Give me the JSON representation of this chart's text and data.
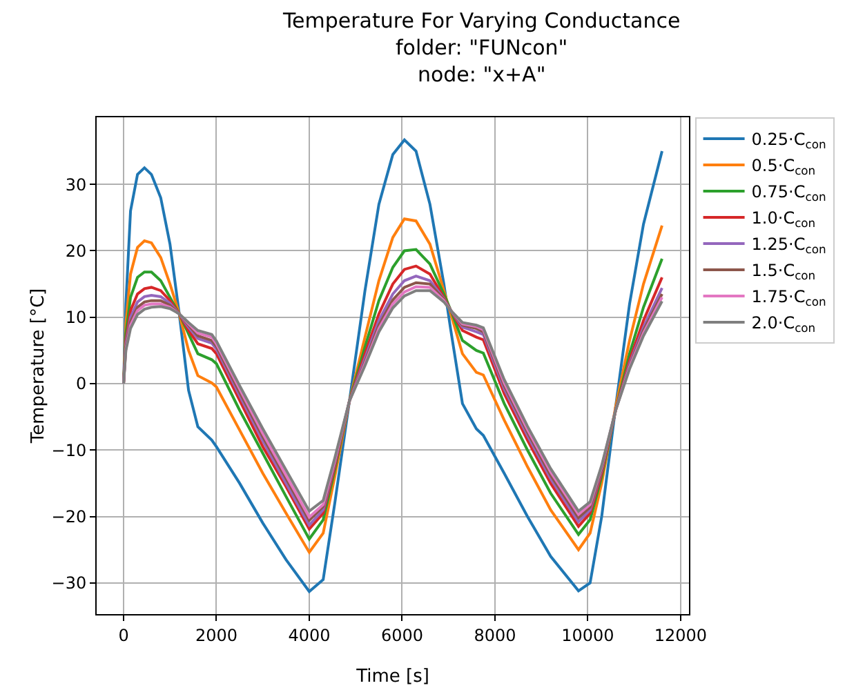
{
  "chart_data": {
    "type": "line",
    "title": "Temperature For Varying Conductance\nfolder: \"FUNcon\"\nnode: \"x+A\"",
    "xlabel": "Time [s]",
    "ylabel": "Temperature [°C]",
    "x": [
      0,
      50,
      150,
      300,
      450,
      600,
      800,
      1000,
      1200,
      1400,
      1600,
      1900,
      2000,
      2500,
      3000,
      3500,
      4000,
      4300,
      4550,
      4866,
      5200,
      5500,
      5800,
      6050,
      6300,
      6600,
      6900,
      7050,
      7300,
      7600,
      7750,
      8200,
      8700,
      9200,
      9800,
      10050,
      10300,
      10600,
      10900,
      11200,
      11600
    ],
    "series": [
      {
        "name": "0.25·C$_{con}$",
        "color": "#1f77b4",
        "values": [
          0,
          12,
          26,
          31.5,
          32.5,
          31.5,
          28,
          21,
          10.5,
          -1,
          -6.5,
          -8.5,
          -9.5,
          -15,
          -21,
          -26.5,
          -31.3,
          -29.5,
          -18,
          -2.6,
          14,
          27,
          34.5,
          36.7,
          35,
          27,
          15,
          8,
          -3,
          -6.8,
          -7.8,
          -13.5,
          -20,
          -26,
          -31.2,
          -30,
          -20,
          -3.5,
          12,
          24,
          35
        ]
      },
      {
        "name": "0.5·C$_{con}$",
        "color": "#ff7f0e",
        "values": [
          0,
          9,
          16.5,
          20.5,
          21.5,
          21.2,
          19,
          15,
          10.5,
          5,
          1.2,
          0.1,
          -0.5,
          -7,
          -13.5,
          -19.5,
          -25.4,
          -22.5,
          -14,
          -2.6,
          7,
          15.5,
          22,
          24.8,
          24.5,
          21,
          14,
          10.5,
          4.5,
          1.7,
          1.3,
          -5.5,
          -12.5,
          -19,
          -25,
          -22.5,
          -15,
          -3.5,
          6.5,
          15,
          23.8
        ]
      },
      {
        "name": "0.75·C$_{con}$",
        "color": "#2ca02c",
        "values": [
          0,
          7.5,
          13,
          16,
          16.8,
          16.8,
          15.5,
          13,
          10.5,
          7.5,
          4.5,
          3.6,
          3,
          -4,
          -10.5,
          -17,
          -23.4,
          -20.5,
          -13,
          -2.6,
          5.5,
          12.5,
          17.5,
          20,
          20.2,
          18,
          13.5,
          11,
          6.5,
          5,
          4.6,
          -3,
          -10,
          -16.5,
          -22.7,
          -20.5,
          -14,
          -4,
          4.5,
          11.5,
          18.8
        ]
      },
      {
        "name": "1.0·C$_{con}$",
        "color": "#d62728",
        "values": [
          0,
          6.5,
          11,
          13.5,
          14.3,
          14.5,
          14,
          12.5,
          10.5,
          8,
          6,
          5.3,
          4.5,
          -2.5,
          -9.5,
          -15.5,
          -21.9,
          -19.5,
          -12.5,
          -2.6,
          4.5,
          10.5,
          15,
          17.2,
          17.7,
          16.5,
          13,
          11,
          8,
          7,
          6.6,
          -1.5,
          -8.5,
          -15,
          -21.5,
          -19.5,
          -13.5,
          -4,
          3.5,
          9.5,
          16
        ]
      },
      {
        "name": "1.25·C$_{con}$",
        "color": "#9467bd",
        "values": [
          0,
          6,
          10,
          12.3,
          13.1,
          13.3,
          13.1,
          12.1,
          10.5,
          8.5,
          6.8,
          6.1,
          5.2,
          -1.8,
          -8.6,
          -15,
          -21.3,
          -19,
          -12,
          -2.6,
          3.8,
          9.5,
          13.5,
          15.5,
          16.2,
          15.5,
          12.8,
          11,
          8.5,
          7.8,
          7.4,
          -0.8,
          -7.8,
          -14.3,
          -20.8,
          -19,
          -13,
          -4,
          3,
          8.5,
          14.4
        ]
      },
      {
        "name": "1.5·C$_{con}$",
        "color": "#8c564b",
        "values": [
          0,
          5.5,
          9.3,
          11.5,
          12.3,
          12.5,
          12.5,
          11.8,
          10.5,
          8.8,
          7.2,
          6.5,
          5.6,
          -1.3,
          -8,
          -14.3,
          -20.6,
          -18.5,
          -11.8,
          -2.6,
          3.3,
          8.8,
          12.6,
          14.5,
          15.2,
          15,
          12.7,
          11,
          8.8,
          8.3,
          7.8,
          -0.3,
          -7.3,
          -13.8,
          -20.2,
          -18.6,
          -12.8,
          -4,
          2.7,
          8,
          13.5
        ]
      },
      {
        "name": "1.75·C$_{con}$",
        "color": "#e377c2",
        "values": [
          0,
          5.2,
          8.8,
          11,
          11.8,
          12,
          12,
          11.5,
          10.5,
          9,
          7.6,
          7,
          6,
          -0.8,
          -7.5,
          -13.8,
          -20.1,
          -18.2,
          -11.6,
          -2.6,
          3,
          8.3,
          12,
          13.8,
          14.6,
          14.5,
          12.5,
          11,
          9,
          8.6,
          8.1,
          0.1,
          -6.9,
          -13.3,
          -19.7,
          -18.2,
          -12.5,
          -4,
          2.5,
          7.6,
          13
        ]
      },
      {
        "name": "2.0·C$_{con}$",
        "color": "#7f7f7f",
        "values": [
          0,
          5,
          8.3,
          10.4,
          11.2,
          11.5,
          11.6,
          11.3,
          10.5,
          9.2,
          8,
          7.4,
          6.4,
          -0.3,
          -6.8,
          -13,
          -19.2,
          -17.6,
          -11.2,
          -2.6,
          2.7,
          7.8,
          11.4,
          13.2,
          14,
          14,
          12.3,
          11,
          9.2,
          8.8,
          8.4,
          0.6,
          -6.4,
          -12.8,
          -19.2,
          -17.8,
          -12.3,
          -4,
          2.2,
          7.2,
          12.4
        ]
      }
    ],
    "xlim": [
      -580,
      12180
    ],
    "ylim": [
      -34.7,
      40.1
    ],
    "xticks": [
      0,
      2000,
      4000,
      6000,
      8000,
      10000,
      12000
    ],
    "yticks": [
      -30,
      -20,
      -10,
      0,
      10,
      20,
      30
    ],
    "grid": true,
    "legend": "top right",
    "marker": "none",
    "line_style": "solid"
  }
}
